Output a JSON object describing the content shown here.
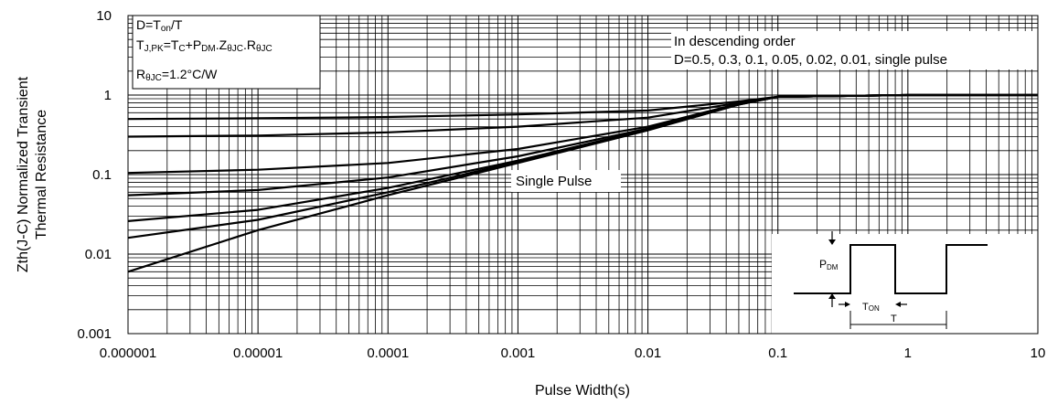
{
  "chart_data": {
    "type": "line",
    "x_scale": "log",
    "y_scale": "log",
    "xlim": [
      1e-06,
      10
    ],
    "ylim": [
      0.001,
      10
    ],
    "grid": true,
    "xlabel": "Pulse Width(s)",
    "ylabel_line1": "Zth(J-C) Normalized Transient",
    "ylabel_line2": "Thermal Resistance",
    "x_ticks": [
      "0.000001",
      "0.00001",
      "0.0001",
      "0.001",
      "0.01",
      "0.1",
      "1",
      "10"
    ],
    "y_ticks": [
      "0.001",
      "0.01",
      "0.1",
      "1",
      "10"
    ],
    "annotations": {
      "formula_line1": "D=Ton/T",
      "formula_line2": "TJ,PK=TC+PDM.ZθJC.RθJC",
      "formula_line3": "RθJC=1.2°C/W",
      "order_line1": "In descending order",
      "order_line2": "D=0.5, 0.3, 0.1, 0.05, 0.02, 0.01, single pulse",
      "single_pulse_label": "Single Pulse"
    },
    "inset": {
      "pdm_label": "PDM",
      "ton_label": "TON",
      "t_label": "T"
    },
    "series": [
      {
        "x": [
          1e-06,
          1e-05,
          0.0001,
          0.001,
          0.01,
          0.05,
          0.1,
          1,
          10
        ],
        "y": [
          0.5,
          0.51,
          0.53,
          0.57,
          0.64,
          0.83,
          0.95,
          1.0,
          1.0
        ]
      },
      {
        "x": [
          1e-06,
          1e-05,
          0.0001,
          0.001,
          0.01,
          0.05,
          0.1,
          1,
          10
        ],
        "y": [
          0.3,
          0.31,
          0.34,
          0.4,
          0.52,
          0.8,
          0.95,
          1.0,
          1.0
        ]
      },
      {
        "x": [
          1e-06,
          1e-05,
          0.0001,
          0.001,
          0.01,
          0.05,
          0.1,
          1,
          10
        ],
        "y": [
          0.105,
          0.115,
          0.14,
          0.21,
          0.4,
          0.78,
          0.95,
          1.0,
          1.0
        ]
      },
      {
        "x": [
          1e-06,
          1e-05,
          0.0001,
          0.001,
          0.01,
          0.05,
          0.1,
          1,
          10
        ],
        "y": [
          0.055,
          0.064,
          0.092,
          0.17,
          0.38,
          0.77,
          0.95,
          1.0,
          1.0
        ]
      },
      {
        "x": [
          1e-06,
          1e-05,
          0.0001,
          0.001,
          0.01,
          0.05,
          0.1,
          1,
          10
        ],
        "y": [
          0.026,
          0.036,
          0.068,
          0.15,
          0.37,
          0.77,
          0.95,
          1.0,
          1.0
        ]
      },
      {
        "x": [
          1e-06,
          1e-05,
          0.0001,
          0.001,
          0.01,
          0.05,
          0.1,
          1,
          10
        ],
        "y": [
          0.016,
          0.027,
          0.06,
          0.145,
          0.365,
          0.76,
          0.95,
          1.0,
          1.0
        ]
      },
      {
        "x": [
          1e-06,
          1e-05,
          0.0001,
          0.001,
          0.01,
          0.05,
          0.1,
          1,
          10
        ],
        "y": [
          0.006,
          0.02,
          0.055,
          0.14,
          0.36,
          0.76,
          0.95,
          1.0,
          1.0
        ]
      }
    ]
  }
}
